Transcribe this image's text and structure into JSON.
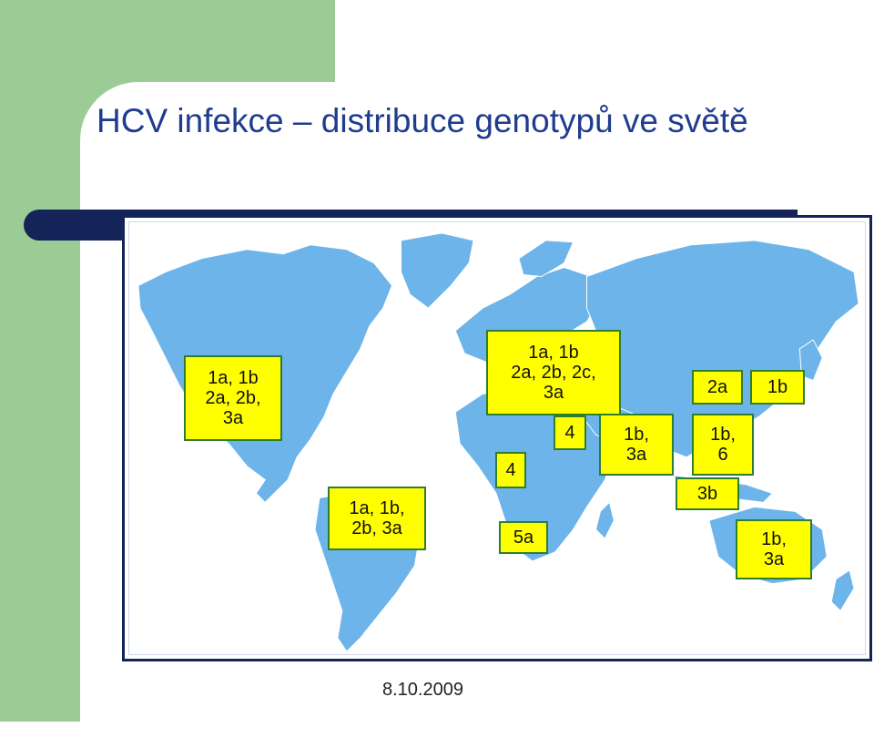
{
  "slide": {
    "title": "HCV infekce – distribuce genotypů ve světě",
    "date": "8.10.2009"
  },
  "map": {
    "land_color": "#6cb4ea",
    "label_bg": "#ffff00",
    "label_border": "#2e7d32",
    "labels": {
      "north_america": [
        "1a, 1b",
        "2a, 2b,",
        "3a"
      ],
      "south_america": [
        "1a, 1b,",
        "2b, 3a"
      ],
      "europe": [
        "1a, 1b",
        "2a, 2b, 2c,",
        "3a"
      ],
      "west_africa": [
        "4"
      ],
      "middle_east": [
        "4"
      ],
      "south_africa": [
        "5a"
      ],
      "south_asia": [
        "1b,",
        "3a"
      ],
      "china": [
        "2a"
      ],
      "japan": [
        "1b"
      ],
      "southeast_asia": [
        "1b,",
        "6"
      ],
      "indonesia": [
        "3b"
      ],
      "australia": [
        "1b,",
        "3a"
      ]
    }
  }
}
